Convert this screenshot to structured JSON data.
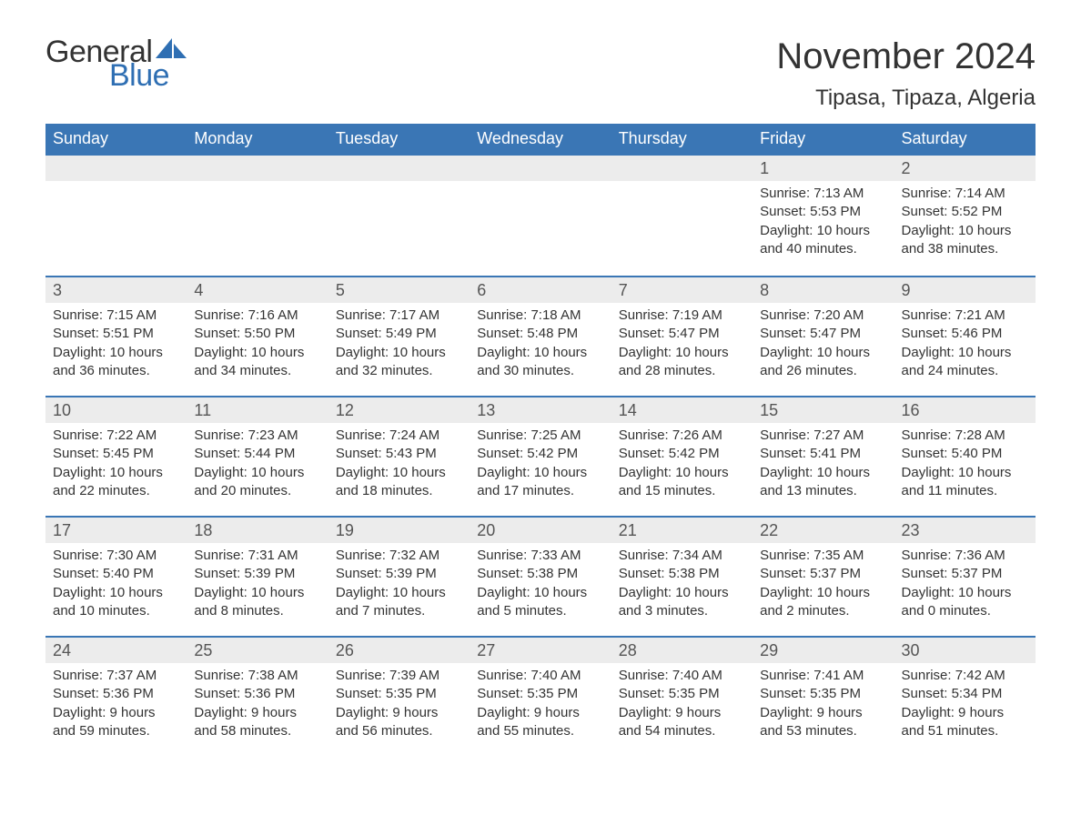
{
  "brand": {
    "word1": "General",
    "word2": "Blue",
    "colors": {
      "text": "#333333",
      "accent": "#2f6fb3",
      "header_bg": "#3a76b5",
      "daynum_bg": "#ececec"
    }
  },
  "title": "November 2024",
  "location": "Tipasa, Tipaza, Algeria",
  "weekdays": [
    "Sunday",
    "Monday",
    "Tuesday",
    "Wednesday",
    "Thursday",
    "Friday",
    "Saturday"
  ],
  "weeks": [
    [
      {
        "n": "",
        "sr": "",
        "ss": "",
        "dl": ""
      },
      {
        "n": "",
        "sr": "",
        "ss": "",
        "dl": ""
      },
      {
        "n": "",
        "sr": "",
        "ss": "",
        "dl": ""
      },
      {
        "n": "",
        "sr": "",
        "ss": "",
        "dl": ""
      },
      {
        "n": "",
        "sr": "",
        "ss": "",
        "dl": ""
      },
      {
        "n": "1",
        "sr": "Sunrise: 7:13 AM",
        "ss": "Sunset: 5:53 PM",
        "dl": "Daylight: 10 hours and 40 minutes."
      },
      {
        "n": "2",
        "sr": "Sunrise: 7:14 AM",
        "ss": "Sunset: 5:52 PM",
        "dl": "Daylight: 10 hours and 38 minutes."
      }
    ],
    [
      {
        "n": "3",
        "sr": "Sunrise: 7:15 AM",
        "ss": "Sunset: 5:51 PM",
        "dl": "Daylight: 10 hours and 36 minutes."
      },
      {
        "n": "4",
        "sr": "Sunrise: 7:16 AM",
        "ss": "Sunset: 5:50 PM",
        "dl": "Daylight: 10 hours and 34 minutes."
      },
      {
        "n": "5",
        "sr": "Sunrise: 7:17 AM",
        "ss": "Sunset: 5:49 PM",
        "dl": "Daylight: 10 hours and 32 minutes."
      },
      {
        "n": "6",
        "sr": "Sunrise: 7:18 AM",
        "ss": "Sunset: 5:48 PM",
        "dl": "Daylight: 10 hours and 30 minutes."
      },
      {
        "n": "7",
        "sr": "Sunrise: 7:19 AM",
        "ss": "Sunset: 5:47 PM",
        "dl": "Daylight: 10 hours and 28 minutes."
      },
      {
        "n": "8",
        "sr": "Sunrise: 7:20 AM",
        "ss": "Sunset: 5:47 PM",
        "dl": "Daylight: 10 hours and 26 minutes."
      },
      {
        "n": "9",
        "sr": "Sunrise: 7:21 AM",
        "ss": "Sunset: 5:46 PM",
        "dl": "Daylight: 10 hours and 24 minutes."
      }
    ],
    [
      {
        "n": "10",
        "sr": "Sunrise: 7:22 AM",
        "ss": "Sunset: 5:45 PM",
        "dl": "Daylight: 10 hours and 22 minutes."
      },
      {
        "n": "11",
        "sr": "Sunrise: 7:23 AM",
        "ss": "Sunset: 5:44 PM",
        "dl": "Daylight: 10 hours and 20 minutes."
      },
      {
        "n": "12",
        "sr": "Sunrise: 7:24 AM",
        "ss": "Sunset: 5:43 PM",
        "dl": "Daylight: 10 hours and 18 minutes."
      },
      {
        "n": "13",
        "sr": "Sunrise: 7:25 AM",
        "ss": "Sunset: 5:42 PM",
        "dl": "Daylight: 10 hours and 17 minutes."
      },
      {
        "n": "14",
        "sr": "Sunrise: 7:26 AM",
        "ss": "Sunset: 5:42 PM",
        "dl": "Daylight: 10 hours and 15 minutes."
      },
      {
        "n": "15",
        "sr": "Sunrise: 7:27 AM",
        "ss": "Sunset: 5:41 PM",
        "dl": "Daylight: 10 hours and 13 minutes."
      },
      {
        "n": "16",
        "sr": "Sunrise: 7:28 AM",
        "ss": "Sunset: 5:40 PM",
        "dl": "Daylight: 10 hours and 11 minutes."
      }
    ],
    [
      {
        "n": "17",
        "sr": "Sunrise: 7:30 AM",
        "ss": "Sunset: 5:40 PM",
        "dl": "Daylight: 10 hours and 10 minutes."
      },
      {
        "n": "18",
        "sr": "Sunrise: 7:31 AM",
        "ss": "Sunset: 5:39 PM",
        "dl": "Daylight: 10 hours and 8 minutes."
      },
      {
        "n": "19",
        "sr": "Sunrise: 7:32 AM",
        "ss": "Sunset: 5:39 PM",
        "dl": "Daylight: 10 hours and 7 minutes."
      },
      {
        "n": "20",
        "sr": "Sunrise: 7:33 AM",
        "ss": "Sunset: 5:38 PM",
        "dl": "Daylight: 10 hours and 5 minutes."
      },
      {
        "n": "21",
        "sr": "Sunrise: 7:34 AM",
        "ss": "Sunset: 5:38 PM",
        "dl": "Daylight: 10 hours and 3 minutes."
      },
      {
        "n": "22",
        "sr": "Sunrise: 7:35 AM",
        "ss": "Sunset: 5:37 PM",
        "dl": "Daylight: 10 hours and 2 minutes."
      },
      {
        "n": "23",
        "sr": "Sunrise: 7:36 AM",
        "ss": "Sunset: 5:37 PM",
        "dl": "Daylight: 10 hours and 0 minutes."
      }
    ],
    [
      {
        "n": "24",
        "sr": "Sunrise: 7:37 AM",
        "ss": "Sunset: 5:36 PM",
        "dl": "Daylight: 9 hours and 59 minutes."
      },
      {
        "n": "25",
        "sr": "Sunrise: 7:38 AM",
        "ss": "Sunset: 5:36 PM",
        "dl": "Daylight: 9 hours and 58 minutes."
      },
      {
        "n": "26",
        "sr": "Sunrise: 7:39 AM",
        "ss": "Sunset: 5:35 PM",
        "dl": "Daylight: 9 hours and 56 minutes."
      },
      {
        "n": "27",
        "sr": "Sunrise: 7:40 AM",
        "ss": "Sunset: 5:35 PM",
        "dl": "Daylight: 9 hours and 55 minutes."
      },
      {
        "n": "28",
        "sr": "Sunrise: 7:40 AM",
        "ss": "Sunset: 5:35 PM",
        "dl": "Daylight: 9 hours and 54 minutes."
      },
      {
        "n": "29",
        "sr": "Sunrise: 7:41 AM",
        "ss": "Sunset: 5:35 PM",
        "dl": "Daylight: 9 hours and 53 minutes."
      },
      {
        "n": "30",
        "sr": "Sunrise: 7:42 AM",
        "ss": "Sunset: 5:34 PM",
        "dl": "Daylight: 9 hours and 51 minutes."
      }
    ]
  ]
}
